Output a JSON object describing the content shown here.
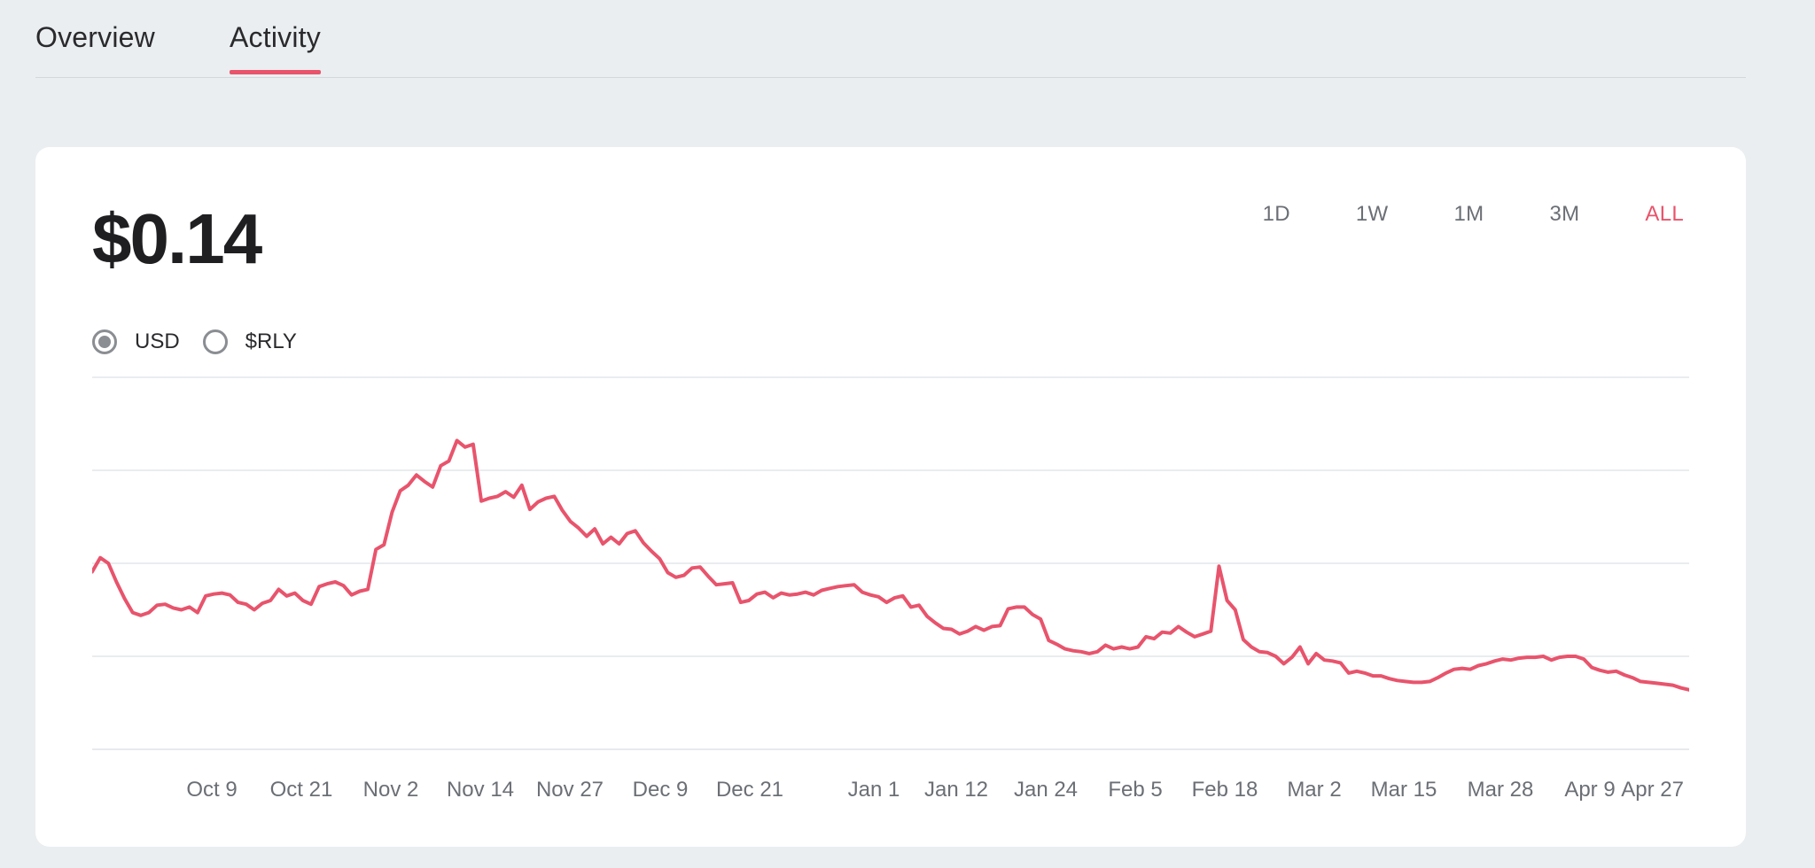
{
  "tabs": [
    {
      "label": "Overview",
      "active": false
    },
    {
      "label": "Activity",
      "active": true
    }
  ],
  "price": "$0.14",
  "ranges": [
    {
      "label": "1D",
      "active": false
    },
    {
      "label": "1W",
      "active": false
    },
    {
      "label": "1M",
      "active": false
    },
    {
      "label": "3M",
      "active": false
    },
    {
      "label": "ALL",
      "active": true
    }
  ],
  "currency_options": [
    {
      "label": "USD",
      "selected": true
    },
    {
      "label": "$RLY",
      "selected": false
    }
  ],
  "colors": {
    "accent": "#e8546c",
    "grid": "#e4e7ea",
    "tick": "#6b6f75"
  },
  "chart_data": {
    "type": "line",
    "title": "",
    "xlabel": "",
    "ylabel": "",
    "grid": true,
    "x_ticks": [
      "Oct 9",
      "Oct 21",
      "Nov 2",
      "Nov 14",
      "Nov 27",
      "Dec 9",
      "Dec 21",
      "Jan 1",
      "Jan 12",
      "Jan 24",
      "Feb 5",
      "Feb 18",
      "Mar 2",
      "Mar 15",
      "Mar 28",
      "Apr 9",
      "Apr 27"
    ],
    "ylim": [
      0,
      4
    ],
    "series": [
      {
        "values": [
          1.91,
          2.06,
          2.0,
          1.8,
          1.62,
          1.47,
          1.44,
          1.47,
          1.55,
          1.56,
          1.52,
          1.5,
          1.53,
          1.47,
          1.65,
          1.67,
          1.68,
          1.66,
          1.58,
          1.56,
          1.5,
          1.57,
          1.6,
          1.72,
          1.65,
          1.68,
          1.6,
          1.56,
          1.75,
          1.78,
          1.8,
          1.76,
          1.66,
          1.7,
          1.72,
          2.15,
          2.2,
          2.55,
          2.78,
          2.84,
          2.95,
          2.88,
          2.82,
          3.05,
          3.1,
          3.32,
          3.25,
          3.28,
          2.67,
          2.7,
          2.72,
          2.77,
          2.71,
          2.84,
          2.58,
          2.66,
          2.7,
          2.72,
          2.57,
          2.45,
          2.38,
          2.29,
          2.37,
          2.21,
          2.28,
          2.21,
          2.32,
          2.35,
          2.22,
          2.13,
          2.05,
          1.9,
          1.85,
          1.87,
          1.95,
          1.96,
          1.86,
          1.77,
          1.78,
          1.79,
          1.58,
          1.6,
          1.67,
          1.69,
          1.63,
          1.68,
          1.66,
          1.67,
          1.69,
          1.66,
          1.71,
          1.73,
          1.75,
          1.76,
          1.77,
          1.69,
          1.66,
          1.64,
          1.58,
          1.63,
          1.65,
          1.53,
          1.55,
          1.43,
          1.36,
          1.3,
          1.29,
          1.24,
          1.27,
          1.32,
          1.28,
          1.32,
          1.33,
          1.51,
          1.53,
          1.53,
          1.45,
          1.4,
          1.17,
          1.13,
          1.08,
          1.06,
          1.05,
          1.03,
          1.05,
          1.12,
          1.08,
          1.1,
          1.08,
          1.1,
          1.21,
          1.19,
          1.26,
          1.25,
          1.32,
          1.26,
          1.21,
          1.24,
          1.27,
          1.97,
          1.6,
          1.5,
          1.18,
          1.1,
          1.05,
          1.04,
          1.0,
          0.92,
          0.99,
          1.1,
          0.92,
          1.03,
          0.96,
          0.95,
          0.93,
          0.82,
          0.84,
          0.82,
          0.79,
          0.79,
          0.76,
          0.74,
          0.73,
          0.72,
          0.72,
          0.73,
          0.77,
          0.82,
          0.86,
          0.87,
          0.86,
          0.9,
          0.92,
          0.95,
          0.97,
          0.96,
          0.98,
          0.99,
          0.99,
          1.0,
          0.96,
          0.99,
          1.0,
          1.0,
          0.97,
          0.88,
          0.85,
          0.83,
          0.84,
          0.8,
          0.77,
          0.73,
          0.72,
          0.71,
          0.7,
          0.69,
          0.66,
          0.64
        ]
      }
    ]
  }
}
